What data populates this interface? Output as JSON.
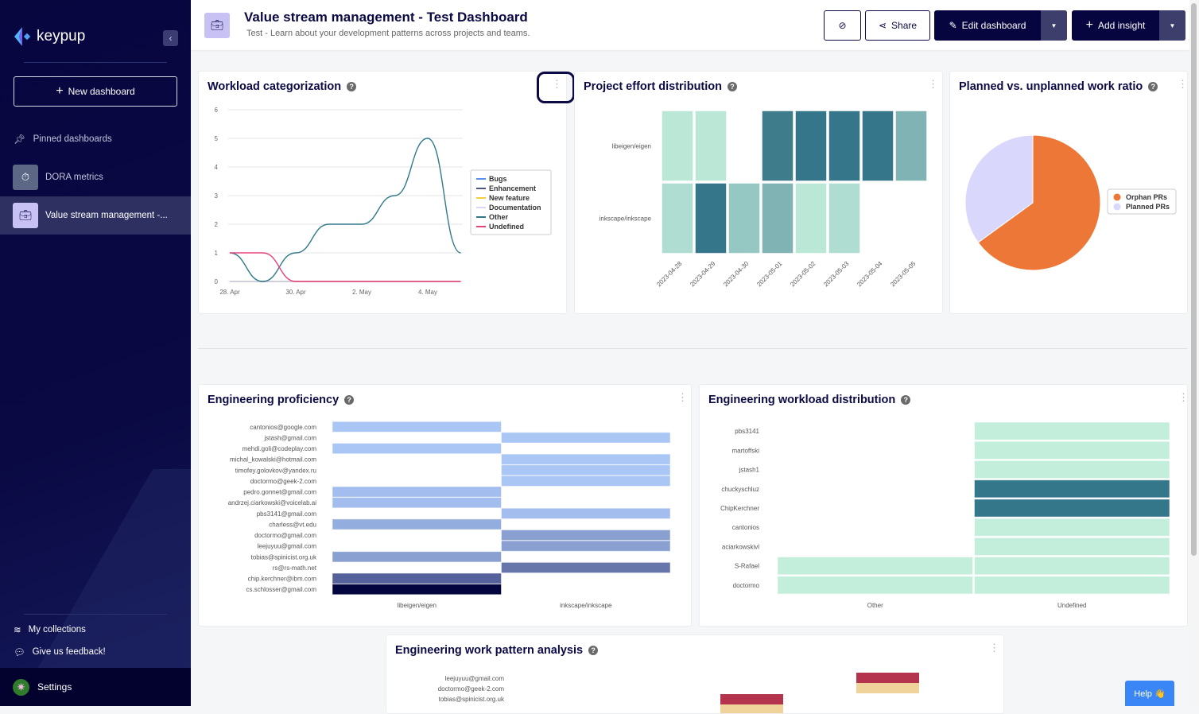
{
  "sidebar": {
    "brand": "keypup",
    "new_dashboard": "New dashboard",
    "pinned_label": "Pinned dashboards",
    "items": [
      {
        "label": "DORA metrics",
        "icon": "stopwatch-icon"
      },
      {
        "label": "Value stream management -...",
        "icon": "briefcase-icon",
        "active": true
      }
    ],
    "my_collections": "My collections",
    "feedback": "Give us feedback!",
    "settings": "Settings"
  },
  "header": {
    "title": "Value stream management - Test Dashboard",
    "subtitle": "Test - Learn about your development patterns across projects and teams.",
    "share": "Share",
    "edit": "Edit dashboard",
    "add": "Add insight"
  },
  "colors": {
    "primary": "#06053f",
    "orange": "#ed7737",
    "lavender": "#d9d8fc",
    "help": "#3b86f7"
  },
  "help_label": "Help 👋",
  "chart_data": [
    {
      "id": "workload",
      "title": "Workload categorization",
      "type": "line",
      "x": [
        "2023-04-28",
        "2023-04-29",
        "2023-04-30",
        "2023-05-01",
        "2023-05-02",
        "2023-05-03",
        "2023-05-04",
        "2023-05-05"
      ],
      "xticks": [
        "28. Apr",
        "30. Apr",
        "2. May",
        "4. May"
      ],
      "yticks": [
        "0",
        "1",
        "2",
        "3",
        "4",
        "5",
        "6"
      ],
      "ylim": [
        0,
        6
      ],
      "legend": "right",
      "series": [
        {
          "name": "Bugs",
          "color": "#5b8ff9",
          "values": [
            0,
            0,
            0,
            0,
            0,
            0,
            0,
            0
          ]
        },
        {
          "name": "Enhancement",
          "color": "#4d5680",
          "values": [
            0,
            0,
            0,
            0,
            0,
            0,
            0,
            0
          ]
        },
        {
          "name": "New feature",
          "color": "#f6cf3c",
          "values": [
            0,
            0,
            0,
            0,
            0,
            0,
            0,
            0
          ]
        },
        {
          "name": "Documentation",
          "color": "#d9d8fc",
          "values": [
            0,
            0,
            0,
            0,
            0,
            0,
            0,
            0
          ]
        },
        {
          "name": "Other",
          "color": "#2f7a8a",
          "values": [
            1,
            0,
            1,
            2,
            2,
            3,
            5,
            1
          ]
        },
        {
          "name": "Undefined",
          "color": "#e8417a",
          "values": [
            1,
            1,
            0,
            0,
            0,
            0,
            0,
            0
          ]
        }
      ]
    },
    {
      "id": "effort",
      "title": "Project effort distribution",
      "type": "heatmap",
      "rows": [
        "libeigen/eigen",
        "inkscape/inkscape"
      ],
      "cols": [
        "2023-04-28",
        "2023-04-29",
        "2023-04-30",
        "2023-05-01",
        "2023-05-02",
        "2023-05-03",
        "2023-05-04",
        "2023-05-05"
      ],
      "values": [
        [
          1,
          1,
          null,
          5,
          6,
          6,
          6,
          4
        ],
        [
          2,
          6,
          3,
          4,
          1,
          2,
          null,
          null
        ]
      ]
    },
    {
      "id": "ratio",
      "title": "Planned vs. unplanned work ratio",
      "type": "pie",
      "legend": "right",
      "slices": [
        {
          "name": "Orphan PRs",
          "value": 65,
          "color": "#ed7737"
        },
        {
          "name": "Planned PRs",
          "value": 35,
          "color": "#d9d8fc"
        }
      ]
    },
    {
      "id": "proficiency",
      "title": "Engineering proficiency",
      "type": "heatmap",
      "rows": [
        "cantonios@google.com",
        "jstash@gmail.com",
        "mehdi.goli@codeplay.com",
        "michal_kowalski@hotmail.com",
        "timofey.golovkov@yandex.ru",
        "doctormo@geek-2.com",
        "pedro.gonnet@gmail.com",
        "andrzej.ciarkowski@voicelab.ai",
        "pbs3141@gmail.com",
        "charless@vt.edu",
        "doctormo@gmail.com",
        "leejuyuu@gmail.com",
        "tobias@spinicist.org.uk",
        "rs@rs-math.net",
        "chip.kerchner@ibm.com",
        "cs.schlosser@gmail.com"
      ],
      "cols": [
        "libeigen/eigen",
        "inkscape/inkscape"
      ],
      "values": [
        [
          1,
          null
        ],
        [
          null,
          1
        ],
        [
          1,
          null
        ],
        [
          null,
          1
        ],
        [
          null,
          1
        ],
        [
          null,
          1
        ],
        [
          2,
          null
        ],
        [
          2,
          null
        ],
        [
          null,
          2
        ],
        [
          3,
          null
        ],
        [
          null,
          4
        ],
        [
          null,
          4
        ],
        [
          4,
          null
        ],
        [
          null,
          5
        ],
        [
          6,
          null
        ],
        [
          8,
          null
        ]
      ]
    },
    {
      "id": "distribution",
      "title": "Engineering workload distribution",
      "type": "heatmap",
      "rows": [
        "pbs3141",
        "martoffski",
        "jstash1",
        "chuckyschluz",
        "ChipKerchner",
        "cantonios",
        "aciarkowskivl",
        "S-Rafael",
        "doctormo"
      ],
      "cols": [
        "Other",
        "Undefined"
      ],
      "values": [
        [
          null,
          1
        ],
        [
          null,
          1
        ],
        [
          null,
          1
        ],
        [
          null,
          5
        ],
        [
          null,
          5
        ],
        [
          null,
          1
        ],
        [
          null,
          1
        ],
        [
          1,
          1
        ],
        [
          1,
          1
        ]
      ]
    },
    {
      "id": "pattern",
      "title": "Engineering work pattern analysis",
      "type": "heatmap",
      "rows": [
        "leejuyuu@gmail.com",
        "doctormo@geek-2.com",
        "tobias@spinicist.org.uk"
      ]
    }
  ]
}
